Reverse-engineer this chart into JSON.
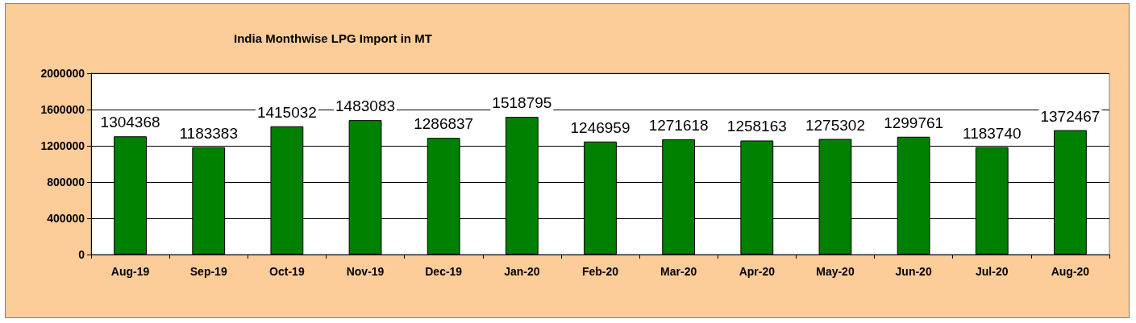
{
  "chart_data": {
    "type": "bar",
    "title": "India Monthwise LPG Import in MT",
    "categories": [
      "Aug-19",
      "Sep-19",
      "Oct-19",
      "Nov-19",
      "Dec-19",
      "Jan-20",
      "Feb-20",
      "Mar-20",
      "Apr-20",
      "May-20",
      "Jun-20",
      "Jul-20",
      "Aug-20"
    ],
    "values": [
      1304368,
      1183383,
      1415032,
      1483083,
      1286837,
      1518795,
      1246959,
      1271618,
      1258163,
      1275302,
      1299761,
      1183740,
      1372467
    ],
    "color": "#008000",
    "ylim": [
      0,
      2000000
    ],
    "yticks": [
      0,
      400000,
      800000,
      1200000,
      1600000,
      2000000
    ],
    "grid": "y",
    "data_labels": true
  }
}
